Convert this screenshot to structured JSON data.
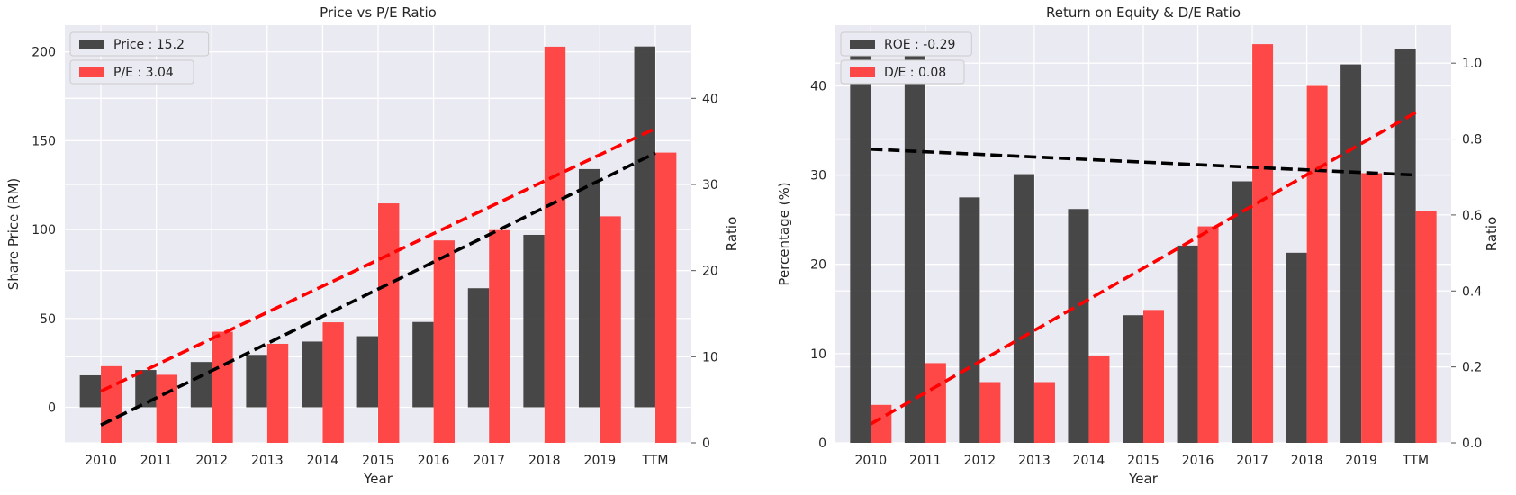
{
  "chart_data": [
    {
      "type": "bar",
      "title": "Price vs P/E Ratio",
      "xlabel": "Year",
      "ylabel": "Share Price (RM)",
      "y2label": "Ratio",
      "categories": [
        "2010",
        "2011",
        "2012",
        "2013",
        "2014",
        "2015",
        "2016",
        "2017",
        "2018",
        "2019",
        "TTM"
      ],
      "ylim": [
        -20,
        215
      ],
      "yticks": [
        0,
        50,
        100,
        150,
        200
      ],
      "y2lim": [
        0,
        48.5
      ],
      "y2ticks": [
        0,
        10,
        20,
        30,
        40
      ],
      "series": [
        {
          "name": "Price : 15.2",
          "axis": "left",
          "color": "#3a3a3a",
          "values": [
            18,
            21,
            25.5,
            29.5,
            37,
            40,
            48,
            67,
            97,
            134,
            203
          ]
        },
        {
          "name": "P/E : 3.04",
          "axis": "right",
          "color": "#ff3b3b",
          "values": [
            8.9,
            7.9,
            12.9,
            11.5,
            14,
            27.8,
            23.5,
            24.7,
            46,
            26.3,
            33.7
          ]
        }
      ],
      "trendlines": [
        {
          "axis": "left",
          "color": "#000000",
          "from": [
            0,
            -10
          ],
          "to": [
            10,
            143
          ]
        },
        {
          "axis": "right",
          "color": "#ff0000",
          "from": [
            0,
            6
          ],
          "to": [
            10,
            36.5
          ]
        }
      ],
      "legend_position": "top-left",
      "grid": true
    },
    {
      "type": "bar",
      "title": "Return on Equity & D/E Ratio",
      "xlabel": "Year",
      "ylabel": "Percentage (%)",
      "y2label": "Ratio",
      "categories": [
        "2010",
        "2011",
        "2012",
        "2013",
        "2014",
        "2015",
        "2016",
        "2017",
        "2018",
        "2019",
        "TTM"
      ],
      "ylim": [
        0,
        46.8
      ],
      "yticks": [
        0,
        10,
        20,
        30,
        40
      ],
      "y2lim": [
        0,
        1.1
      ],
      "y2ticks": [
        0.0,
        0.2,
        0.4,
        0.6,
        0.8,
        1.0
      ],
      "series": [
        {
          "name": "ROE : -0.29",
          "axis": "left",
          "color": "#3a3a3a",
          "values": [
            43.8,
            44.8,
            27.5,
            30.1,
            26.2,
            14.3,
            22.1,
            29.3,
            21.3,
            42.4,
            44.1
          ]
        },
        {
          "name": "D/E : 0.08",
          "axis": "right",
          "color": "#ff3b3b",
          "values": [
            0.1,
            0.21,
            0.16,
            0.16,
            0.23,
            0.35,
            0.57,
            1.05,
            0.94,
            0.71,
            0.61
          ]
        }
      ],
      "trendlines": [
        {
          "axis": "left",
          "color": "#000000",
          "from": [
            0,
            32.9
          ],
          "to": [
            10,
            30
          ]
        },
        {
          "axis": "right",
          "color": "#ff0000",
          "from": [
            0,
            0.05
          ],
          "to": [
            10,
            0.87
          ]
        }
      ],
      "legend_position": "top-left",
      "grid": true
    }
  ]
}
